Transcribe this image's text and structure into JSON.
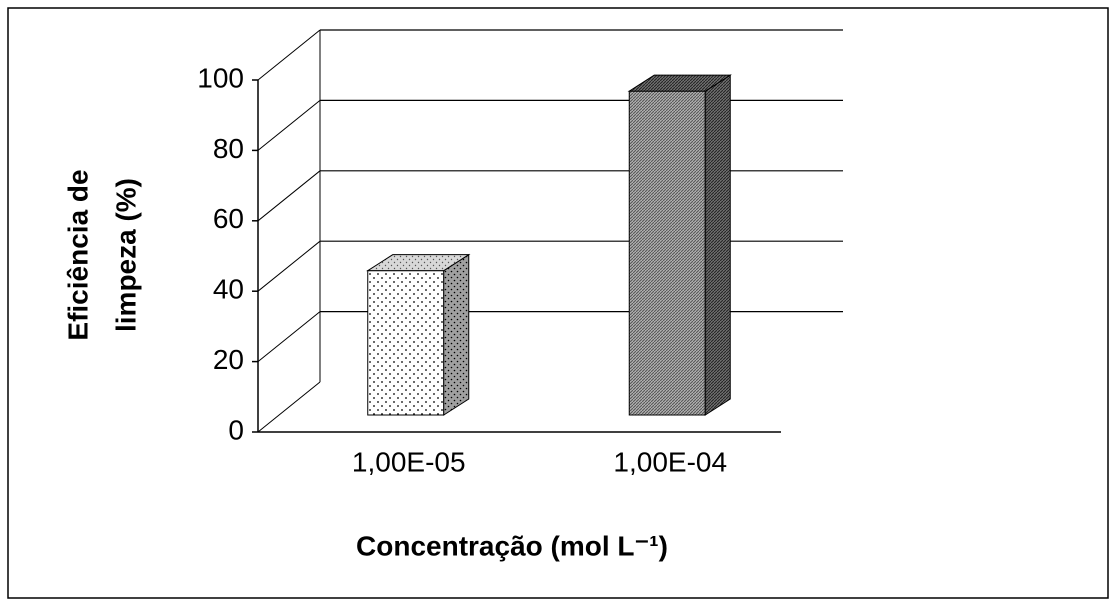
{
  "chart_data": {
    "type": "bar3d",
    "ylabel": [
      "Eficiência de",
      "limpeza (%)"
    ],
    "xlabel": "Concentração (mol L⁻¹)",
    "categories": [
      "1,00E-05",
      "1,00E-04"
    ],
    "values": [
      41,
      92
    ],
    "ylim": [
      0,
      100
    ],
    "yticks": [
      0,
      20,
      40,
      60,
      80,
      100
    ],
    "grid": true
  }
}
